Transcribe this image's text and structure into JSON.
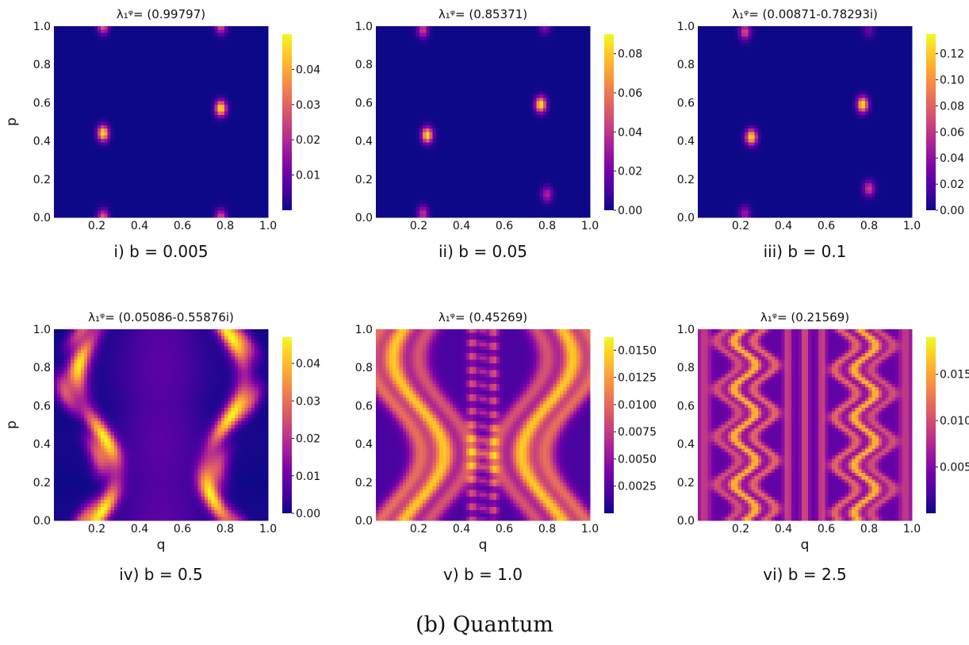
{
  "figure_caption": "(b) Quantum",
  "colormap": {
    "name": "plasma",
    "stops": [
      "#0d0887",
      "#46039f",
      "#7201a8",
      "#9c179e",
      "#bd3786",
      "#d8576b",
      "#ed7953",
      "#fb9f3a",
      "#fdca26",
      "#f0f921"
    ]
  },
  "chart_data": [
    {
      "type": "heatmap",
      "title": "λ₁ᵠ= (0.99797)",
      "subtitle": "i) b = 0.005",
      "xlabel": "",
      "ylabel": "p",
      "xlim": [
        0,
        1
      ],
      "ylim": [
        0,
        1
      ],
      "xticks": [
        "0.2",
        "0.4",
        "0.6",
        "0.8",
        "1.0"
      ],
      "yticks": [
        "0.0",
        "0.2",
        "0.4",
        "0.6",
        "0.8",
        "1.0"
      ],
      "colorbar": {
        "range": [
          0,
          0.05
        ],
        "ticks": [
          "0.01",
          "0.02",
          "0.03",
          "0.04"
        ]
      },
      "pattern": "localized",
      "hotspots": [
        {
          "q": 0.23,
          "p": 0.44,
          "amp": 1.0
        },
        {
          "q": 0.78,
          "p": 0.57,
          "amp": 1.0
        },
        {
          "q": 0.23,
          "p": 1.0,
          "amp": 0.6
        },
        {
          "q": 0.78,
          "p": 1.0,
          "amp": 0.55
        },
        {
          "q": 0.23,
          "p": 0.0,
          "amp": 0.6
        },
        {
          "q": 0.78,
          "p": 0.0,
          "amp": 0.55
        }
      ]
    },
    {
      "type": "heatmap",
      "title": "λ₁ᵠ= (0.85371)",
      "subtitle": "ii) b = 0.05",
      "xlabel": "",
      "ylabel": "",
      "xlim": [
        0,
        1
      ],
      "ylim": [
        0,
        1
      ],
      "xticks": [
        "0.2",
        "0.4",
        "0.6",
        "0.8",
        "1.0"
      ],
      "yticks": [
        "0.0",
        "0.2",
        "0.4",
        "0.6",
        "0.8",
        "1.0"
      ],
      "colorbar": {
        "range": [
          0,
          0.09
        ],
        "ticks": [
          "0.00",
          "0.02",
          "0.04",
          "0.06",
          "0.08"
        ]
      },
      "pattern": "localized",
      "hotspots": [
        {
          "q": 0.24,
          "p": 0.43,
          "amp": 1.0
        },
        {
          "q": 0.77,
          "p": 0.59,
          "amp": 1.0
        },
        {
          "q": 0.22,
          "p": 0.98,
          "amp": 0.5
        },
        {
          "q": 0.79,
          "p": 1.0,
          "amp": 0.3
        },
        {
          "q": 0.22,
          "p": 0.02,
          "amp": 0.45
        },
        {
          "q": 0.8,
          "p": 0.12,
          "amp": 0.4
        }
      ]
    },
    {
      "type": "heatmap",
      "title": "λ₁ᵠ= (0.00871-0.78293i)",
      "subtitle": "iii) b = 0.1",
      "xlabel": "",
      "ylabel": "",
      "xlim": [
        0,
        1
      ],
      "ylim": [
        0,
        1
      ],
      "xticks": [
        "0.2",
        "0.4",
        "0.6",
        "0.8",
        "1.0"
      ],
      "yticks": [
        "0.0",
        "0.2",
        "0.4",
        "0.6",
        "0.8",
        "1.0"
      ],
      "colorbar": {
        "range": [
          0,
          0.135
        ],
        "ticks": [
          "0.00",
          "0.02",
          "0.04",
          "0.06",
          "0.08",
          "0.10",
          "0.12"
        ]
      },
      "pattern": "localized",
      "hotspots": [
        {
          "q": 0.25,
          "p": 0.42,
          "amp": 1.0
        },
        {
          "q": 0.77,
          "p": 0.59,
          "amp": 1.0
        },
        {
          "q": 0.22,
          "p": 0.97,
          "amp": 0.55
        },
        {
          "q": 0.8,
          "p": 0.98,
          "amp": 0.2
        },
        {
          "q": 0.22,
          "p": 0.02,
          "amp": 0.35
        },
        {
          "q": 0.8,
          "p": 0.15,
          "amp": 0.5
        }
      ]
    },
    {
      "type": "heatmap",
      "title": "λ₁ᵠ= (0.05086-0.55876i)",
      "subtitle": "iv) b = 0.5",
      "xlabel": "q",
      "ylabel": "p",
      "xlim": [
        0,
        1
      ],
      "ylim": [
        0,
        1
      ],
      "xticks": [
        "0.2",
        "0.4",
        "0.6",
        "0.8",
        "1.0"
      ],
      "yticks": [
        "0.0",
        "0.2",
        "0.4",
        "0.6",
        "0.8",
        "1.0"
      ],
      "colorbar": {
        "range": [
          0,
          0.047
        ],
        "ticks": [
          "0.00",
          "0.01",
          "0.02",
          "0.03",
          "0.04"
        ]
      },
      "pattern": "arcs",
      "freq": 1,
      "amp": 0.09,
      "width": 0.045
    },
    {
      "type": "heatmap",
      "title": "λ₁ᵠ= (0.45269)",
      "subtitle": "v) b = 1.0",
      "xlabel": "q",
      "ylabel": "",
      "xlim": [
        0,
        1
      ],
      "ylim": [
        0,
        1
      ],
      "xticks": [
        "0.2",
        "0.4",
        "0.6",
        "0.8",
        "1.0"
      ],
      "yticks": [
        "0.0",
        "0.2",
        "0.4",
        "0.6",
        "0.8",
        "1.0"
      ],
      "colorbar": {
        "range": [
          0,
          0.0162
        ],
        "ticks": [
          "0.0025",
          "0.0050",
          "0.0075",
          "0.0100",
          "0.0125",
          "0.0150"
        ]
      },
      "pattern": "bands",
      "freq": 1,
      "amp": 0.12,
      "width": 0.05
    },
    {
      "type": "heatmap",
      "title": "λ₁ᵠ= (0.21569)",
      "subtitle": "vi) b = 2.5",
      "xlabel": "q",
      "ylabel": "",
      "xlim": [
        0,
        1
      ],
      "ylim": [
        0,
        1
      ],
      "xticks": [
        "0.2",
        "0.4",
        "0.6",
        "0.8",
        "1.0"
      ],
      "yticks": [
        "0.0",
        "0.2",
        "0.4",
        "0.6",
        "0.8",
        "1.0"
      ],
      "colorbar": {
        "range": [
          0,
          0.019
        ],
        "ticks": [
          "0.005",
          "0.010",
          "0.015"
        ]
      },
      "pattern": "wiggles",
      "freq": 4,
      "amp": 0.05,
      "width": 0.03
    }
  ]
}
